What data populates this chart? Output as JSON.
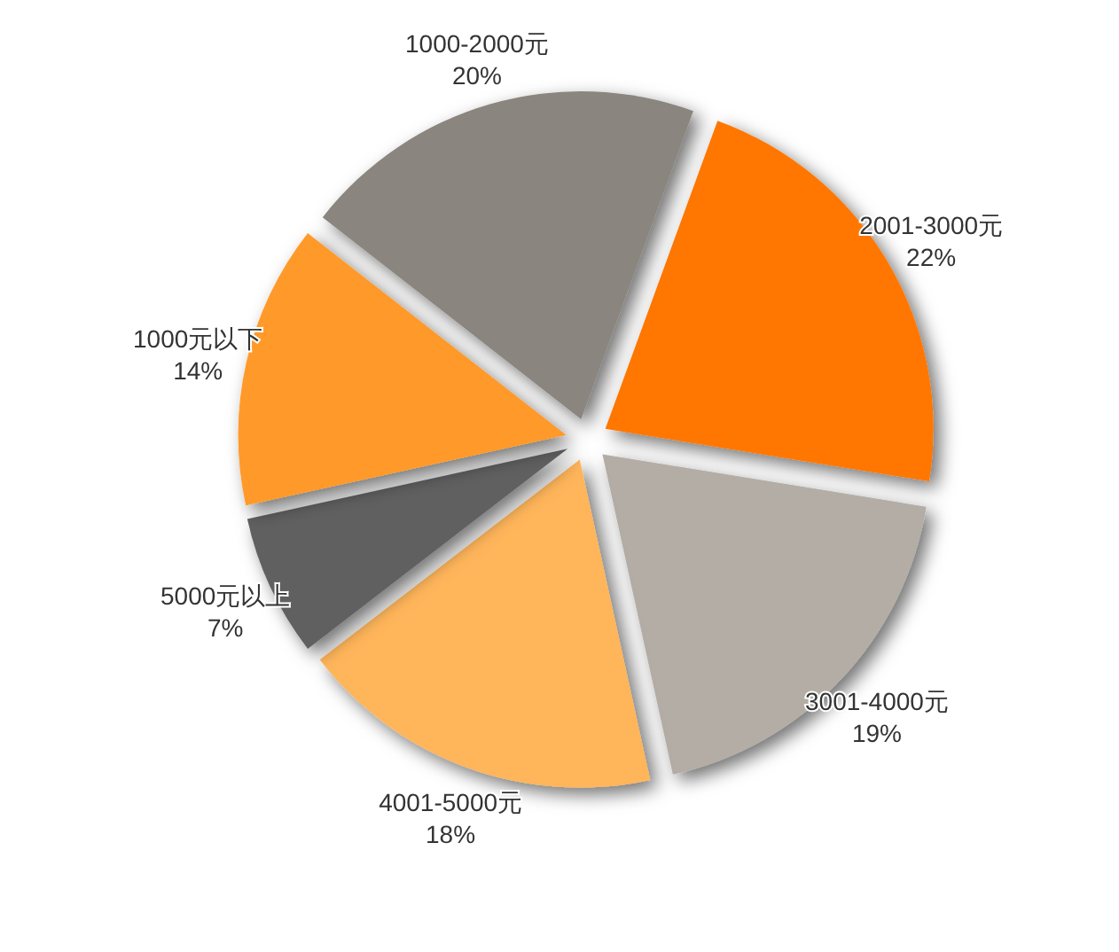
{
  "chart_data": {
    "type": "pie",
    "categories": [
      "2001-3000元",
      "3001-4000元",
      "4001-5000元",
      "5000元以上",
      "1000元以下",
      "1000-2000元"
    ],
    "values": [
      22,
      19,
      18,
      7,
      14,
      20
    ],
    "value_labels": [
      "22%",
      "19%",
      "18%",
      "7%",
      "14%",
      "20%"
    ],
    "colors": [
      "#ff7700",
      "#b3ada6",
      "#ffb55a",
      "#606060",
      "#ff9a2a",
      "#8a857e"
    ]
  }
}
